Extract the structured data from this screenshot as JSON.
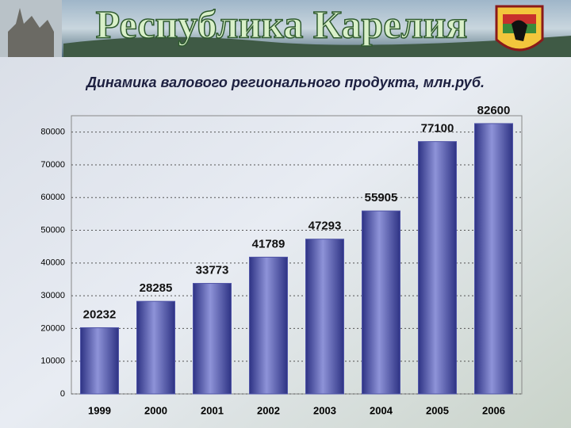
{
  "header": {
    "title": "Республика Карелия"
  },
  "chart_data": {
    "type": "bar",
    "title": "Динамика валового регионального продукта, млн.руб.",
    "categories": [
      "1999",
      "2000",
      "2001",
      "2002",
      "2003",
      "2004",
      "2005",
      "2006"
    ],
    "values": [
      20232,
      28285,
      33773,
      41789,
      47293,
      55905,
      77100,
      82600
    ],
    "color": "#5055a8",
    "ylim": [
      0,
      85000
    ],
    "yticks": [
      0,
      10000,
      20000,
      30000,
      40000,
      50000,
      60000,
      70000,
      80000
    ],
    "grid": true
  }
}
